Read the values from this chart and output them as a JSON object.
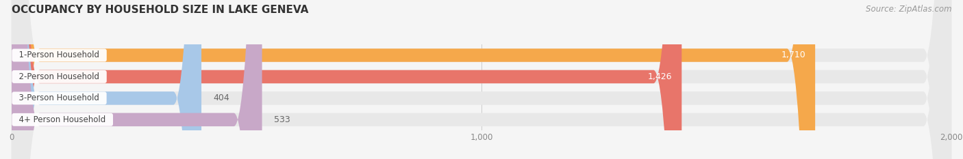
{
  "title": "OCCUPANCY BY HOUSEHOLD SIZE IN LAKE GENEVA",
  "source": "Source: ZipAtlas.com",
  "categories": [
    "1-Person Household",
    "2-Person Household",
    "3-Person Household",
    "4+ Person Household"
  ],
  "values": [
    1710,
    1426,
    404,
    533
  ],
  "bar_colors": [
    "#F5A84B",
    "#E8756A",
    "#A8C8E8",
    "#C8A8C8"
  ],
  "label_colors": [
    "#ffffff",
    "#ffffff",
    "#777777",
    "#777777"
  ],
  "xlim": [
    0,
    2000
  ],
  "xticks": [
    0,
    1000,
    2000
  ],
  "title_fontsize": 11,
  "source_fontsize": 8.5,
  "bar_label_fontsize": 9,
  "category_fontsize": 8.5,
  "background_color": "#f5f5f5",
  "bar_background_color": "#e8e8e8"
}
